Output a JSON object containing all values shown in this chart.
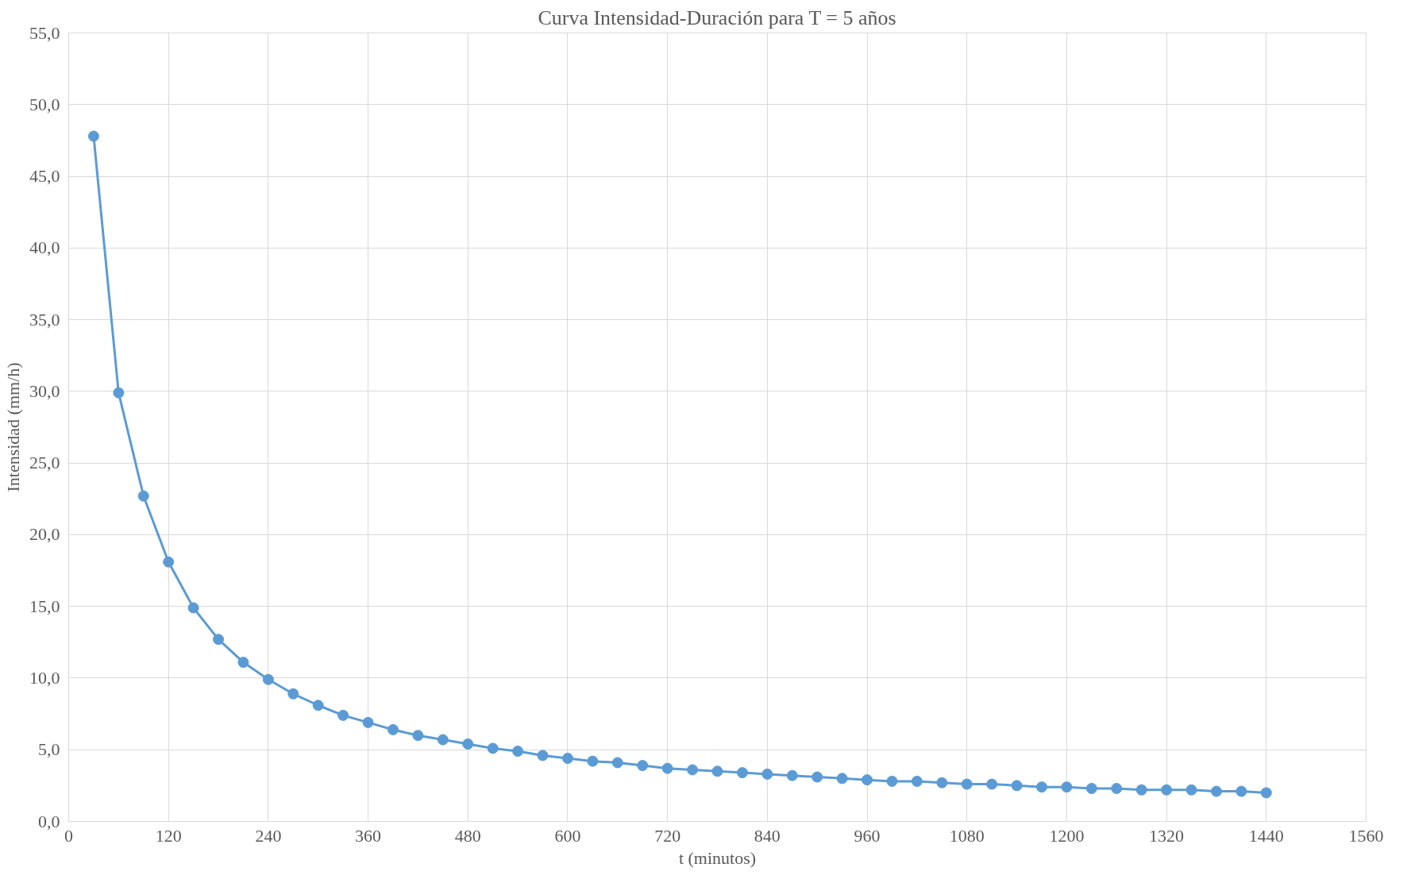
{
  "chart_data": {
    "type": "line",
    "title": "Curva Intensidad-Duración para T = 5 años",
    "xlabel": "t (minutos)",
    "ylabel": "Intensidad (mm/h)",
    "x": [
      30,
      60,
      90,
      120,
      150,
      180,
      210,
      240,
      270,
      300,
      330,
      360,
      390,
      420,
      450,
      480,
      510,
      540,
      570,
      600,
      630,
      660,
      690,
      720,
      750,
      780,
      810,
      840,
      870,
      900,
      930,
      960,
      990,
      1020,
      1050,
      1080,
      1110,
      1140,
      1170,
      1200,
      1230,
      1260,
      1290,
      1320,
      1350,
      1380,
      1410,
      1440
    ],
    "series": [
      {
        "color": "#5b9bd5",
        "values": [
          47.8,
          29.9,
          22.7,
          18.1,
          14.9,
          12.7,
          11.1,
          9.9,
          8.9,
          8.1,
          7.4,
          6.9,
          6.4,
          6.0,
          5.7,
          5.4,
          5.1,
          4.9,
          4.6,
          4.4,
          4.2,
          4.1,
          3.9,
          3.7,
          3.6,
          3.5,
          3.4,
          3.3,
          3.2,
          3.1,
          3.0,
          2.9,
          2.8,
          2.8,
          2.7,
          2.6,
          2.6,
          2.5,
          2.4,
          2.4,
          2.3,
          2.3,
          2.2,
          2.2,
          2.2,
          2.1,
          2.1,
          2.0
        ]
      }
    ],
    "xlim": [
      0,
      1560
    ],
    "xticks": [
      0,
      120,
      240,
      360,
      480,
      600,
      720,
      840,
      960,
      1080,
      1200,
      1320,
      1440,
      1560
    ],
    "ylim": [
      0,
      55
    ],
    "yticks": [
      {
        "value": 0,
        "label": "0,0"
      },
      {
        "value": 5,
        "label": "5,0"
      },
      {
        "value": 10,
        "label": "10,0"
      },
      {
        "value": 15,
        "label": "15,0"
      },
      {
        "value": 20,
        "label": "20,0"
      },
      {
        "value": 25,
        "label": "25,0"
      },
      {
        "value": 30,
        "label": "30,0"
      },
      {
        "value": 35,
        "label": "35,0"
      },
      {
        "value": 40,
        "label": "40,0"
      },
      {
        "value": 45,
        "label": "45,0"
      },
      {
        "value": 50,
        "label": "50,0"
      },
      {
        "value": 55,
        "label": "55,0"
      }
    ],
    "grid": true,
    "marker": "circle",
    "line_style": "solid"
  }
}
